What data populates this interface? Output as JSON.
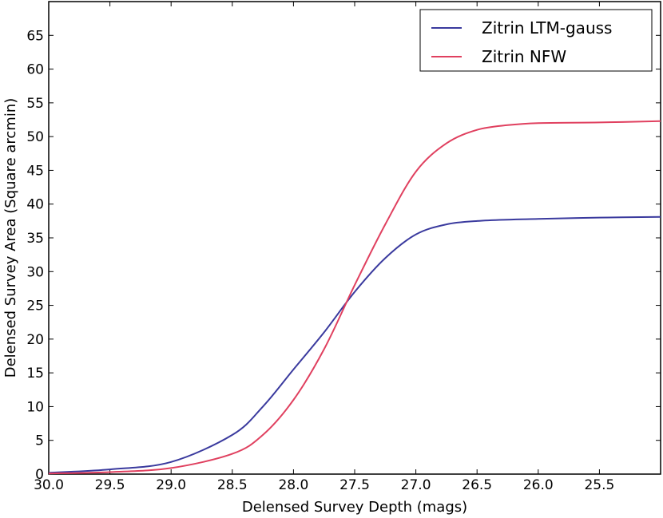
{
  "chart_data": {
    "type": "line",
    "xlabel": "Delensed Survey Depth (mags)",
    "ylabel": "Delensed Survey Area (Square arcmin)",
    "xlim": [
      30.0,
      25.0
    ],
    "ylim": [
      0,
      70
    ],
    "x_inverted": true,
    "xticks": [
      "30.0",
      "29.5",
      "29.0",
      "28.5",
      "28.0",
      "27.5",
      "27.0",
      "26.5",
      "26.0",
      "25.5"
    ],
    "yticks": [
      "0",
      "5",
      "10",
      "15",
      "20",
      "25",
      "30",
      "35",
      "40",
      "45",
      "50",
      "55",
      "60",
      "65"
    ],
    "grid": false,
    "legend_position": "top-right",
    "x": [
      30.0,
      29.5,
      29.0,
      28.5,
      28.25,
      28.0,
      27.75,
      27.5,
      27.25,
      27.0,
      26.75,
      26.5,
      26.25,
      26.0,
      25.5,
      25.0
    ],
    "series": [
      {
        "name": "Zitrin LTM-gauss",
        "color": "#3a3a9e",
        "values": [
          0.2,
          0.7,
          1.8,
          5.8,
          10.0,
          15.5,
          21.0,
          27.0,
          32.0,
          35.5,
          37.0,
          37.5,
          37.7,
          37.8,
          38.0,
          38.1
        ]
      },
      {
        "name": "Zitrin NFW",
        "color": "#e0405f",
        "values": [
          0.1,
          0.3,
          0.9,
          3.0,
          5.8,
          11.0,
          18.5,
          28.0,
          37.0,
          44.8,
          49.0,
          51.0,
          51.7,
          52.0,
          52.1,
          52.3
        ]
      }
    ]
  }
}
